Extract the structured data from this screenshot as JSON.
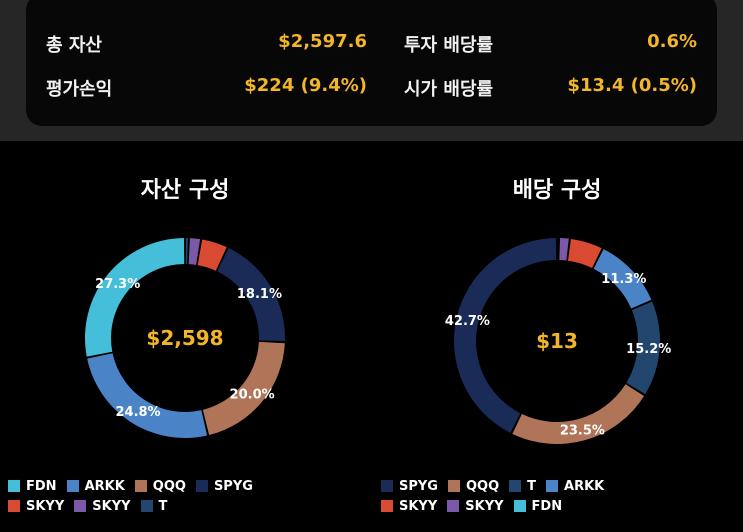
{
  "colors": {
    "FDN": "#45bfd9",
    "ARKK": "#4b84c6",
    "QQQ": "#b07558",
    "SPYG": "#1b2b57",
    "SKYY_red": "#d94a32",
    "SKYY_purple": "#7b58a8",
    "T": "#23466f",
    "accent": "#f3b52a"
  },
  "summary": {
    "total_assets_label": "총 자산",
    "total_assets_value": "$2,597.6",
    "invest_yield_label": "투자 배당률",
    "invest_yield_value": "0.6%",
    "pnl_label": "평가손익",
    "pnl_value": "$224 (9.4%)",
    "market_yield_label": "시가 배당률",
    "market_yield_value": "$13.4 (0.5%)"
  },
  "charts": {
    "assets": {
      "title": "자산 구성",
      "center": "$2,598"
    },
    "dividends": {
      "title": "배당 구성",
      "center": "$13"
    }
  },
  "chart_data": [
    {
      "type": "pie",
      "title": "자산 구성",
      "center_text": "$2,598",
      "slices": [
        {
          "name": "T",
          "value": 0.6,
          "color": "#23466f",
          "label": ""
        },
        {
          "name": "SKYY",
          "value": 1.9,
          "color": "#7b58a8",
          "label": ""
        },
        {
          "name": "SKYY",
          "value": 4.3,
          "color": "#d94a32",
          "label": ""
        },
        {
          "name": "SPYG",
          "value": 18.1,
          "color": "#1b2b57",
          "label": "18.1%"
        },
        {
          "name": "QQQ",
          "value": 20.0,
          "color": "#b07558",
          "label": "20.0%"
        },
        {
          "name": "ARKK",
          "value": 24.8,
          "color": "#4b84c6",
          "label": "24.8%"
        },
        {
          "name": "FDN",
          "value": 27.3,
          "color": "#45bfd9",
          "label": "27.3%"
        }
      ],
      "legend": [
        {
          "name": "FDN",
          "color": "#45bfd9"
        },
        {
          "name": "ARKK",
          "color": "#4b84c6"
        },
        {
          "name": "QQQ",
          "color": "#b07558"
        },
        {
          "name": "SPYG",
          "color": "#1b2b57"
        },
        {
          "name": "SKYY",
          "color": "#d94a32"
        },
        {
          "name": "SKYY",
          "color": "#7b58a8"
        },
        {
          "name": "T",
          "color": "#23466f"
        }
      ]
    },
    {
      "type": "pie",
      "title": "배당 구성",
      "center_text": "$13",
      "slices": [
        {
          "name": "FDN",
          "value": 0.3,
          "color": "#45bfd9",
          "label": ""
        },
        {
          "name": "SKYY",
          "value": 1.7,
          "color": "#7b58a8",
          "label": ""
        },
        {
          "name": "SKYY",
          "value": 5.3,
          "color": "#d94a32",
          "label": ""
        },
        {
          "name": "ARKK",
          "value": 11.3,
          "color": "#4b84c6",
          "label": "11.3%"
        },
        {
          "name": "T",
          "value": 15.2,
          "color": "#23466f",
          "label": "15.2%"
        },
        {
          "name": "QQQ",
          "value": 23.5,
          "color": "#b07558",
          "label": "23.5%"
        },
        {
          "name": "SPYG",
          "value": 42.7,
          "color": "#1b2b57",
          "label": "42.7%"
        }
      ],
      "legend": [
        {
          "name": "SPYG",
          "color": "#1b2b57"
        },
        {
          "name": "QQQ",
          "color": "#b07558"
        },
        {
          "name": "T",
          "color": "#23466f"
        },
        {
          "name": "ARKK",
          "color": "#4b84c6"
        },
        {
          "name": "SKYY",
          "color": "#d94a32"
        },
        {
          "name": "SKYY",
          "color": "#7b58a8"
        },
        {
          "name": "FDN",
          "color": "#45bfd9"
        }
      ]
    }
  ]
}
